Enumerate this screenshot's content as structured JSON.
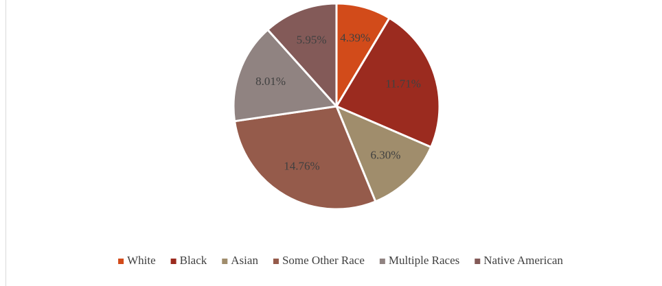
{
  "chart_data": {
    "type": "pie",
    "categories": [
      "White",
      "Black",
      "Asian",
      "Some Other Race",
      "Multiple Races",
      "Native American"
    ],
    "values": [
      4.39,
      11.71,
      6.3,
      14.76,
      8.01,
      5.95
    ],
    "value_labels": [
      "4.39%",
      "11.71%",
      "6.30%",
      "14.76%",
      "8.01%",
      "5.95%"
    ],
    "colors": [
      "#d24b1a",
      "#9b2b1f",
      "#a08d6c",
      "#955b4b",
      "#908381",
      "#835a58"
    ],
    "legend": "bottom"
  }
}
